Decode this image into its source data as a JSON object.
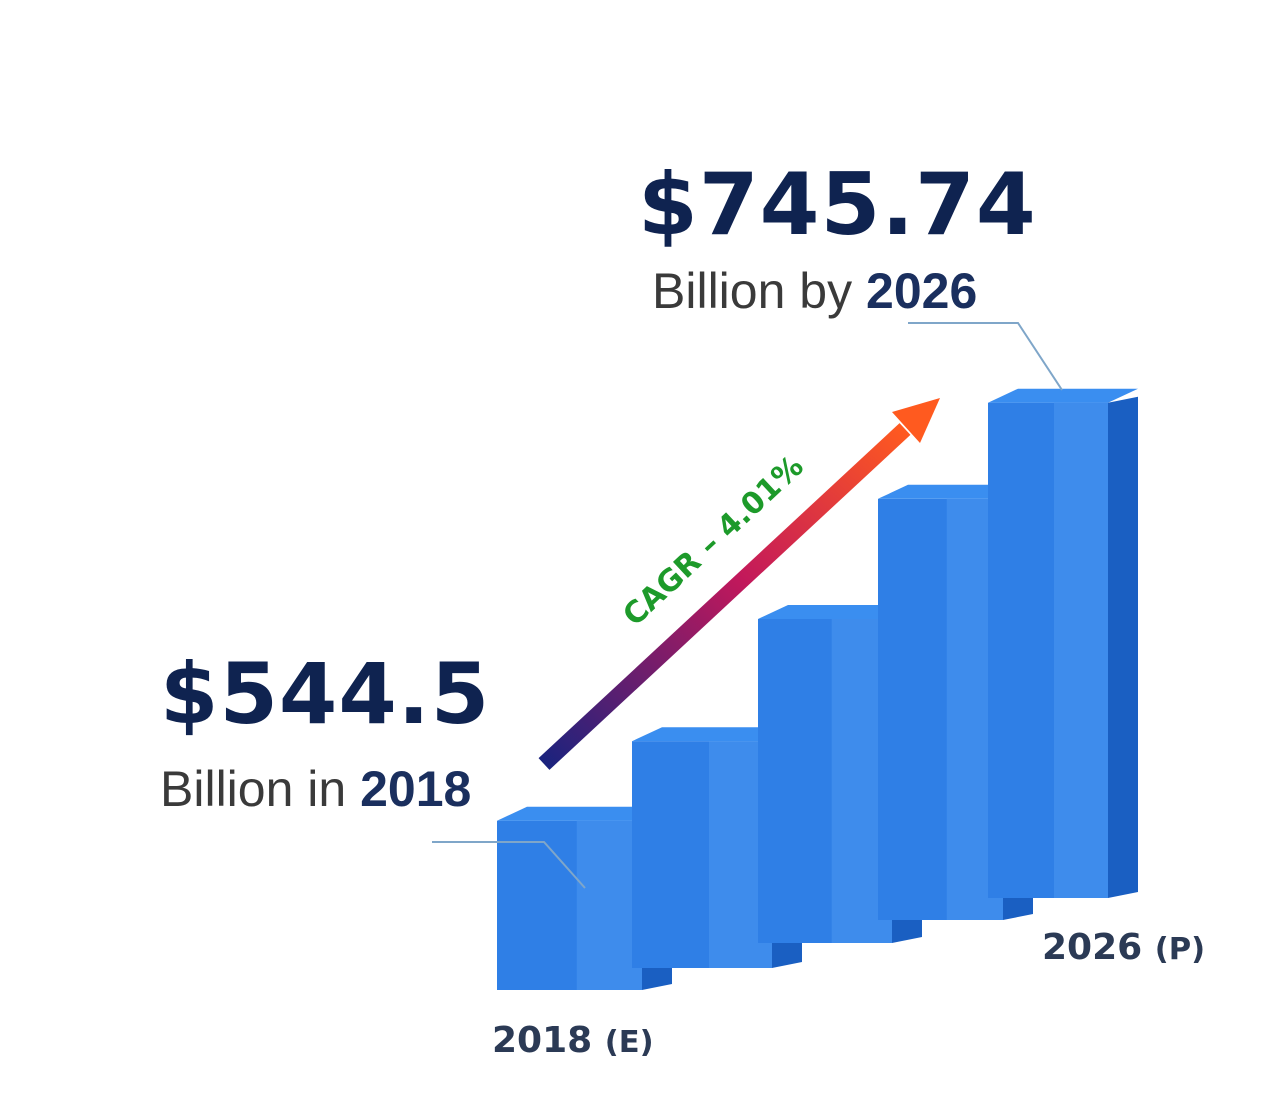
{
  "chart_data": {
    "type": "bar",
    "style": "3d",
    "bar_color": "#2f7fe6",
    "categories": [
      "2018 (E)",
      "",
      "",
      "",
      "2026 (P)"
    ],
    "values": [
      544.5,
      580,
      640,
      700,
      745.74
    ],
    "ylim": [
      440,
      760
    ],
    "annotations": {
      "start": {
        "value": "$544.5",
        "prefix": "Billion in",
        "year": "2018"
      },
      "end": {
        "value": "$745.74",
        "prefix": "Billion by",
        "year": "2026"
      },
      "cagr": "CAGR – 4.01%"
    },
    "tick_labels": {
      "first": {
        "year": "2018",
        "tag": "(E)"
      },
      "last": {
        "year": "2026",
        "tag": "(P)"
      }
    },
    "colors": {
      "value_text": "#0f2350",
      "cagr_text": "#1d9a2a",
      "arrow_start": "#1a237e",
      "arrow_mid": "#c2185b",
      "arrow_end": "#ff5a1f"
    }
  }
}
